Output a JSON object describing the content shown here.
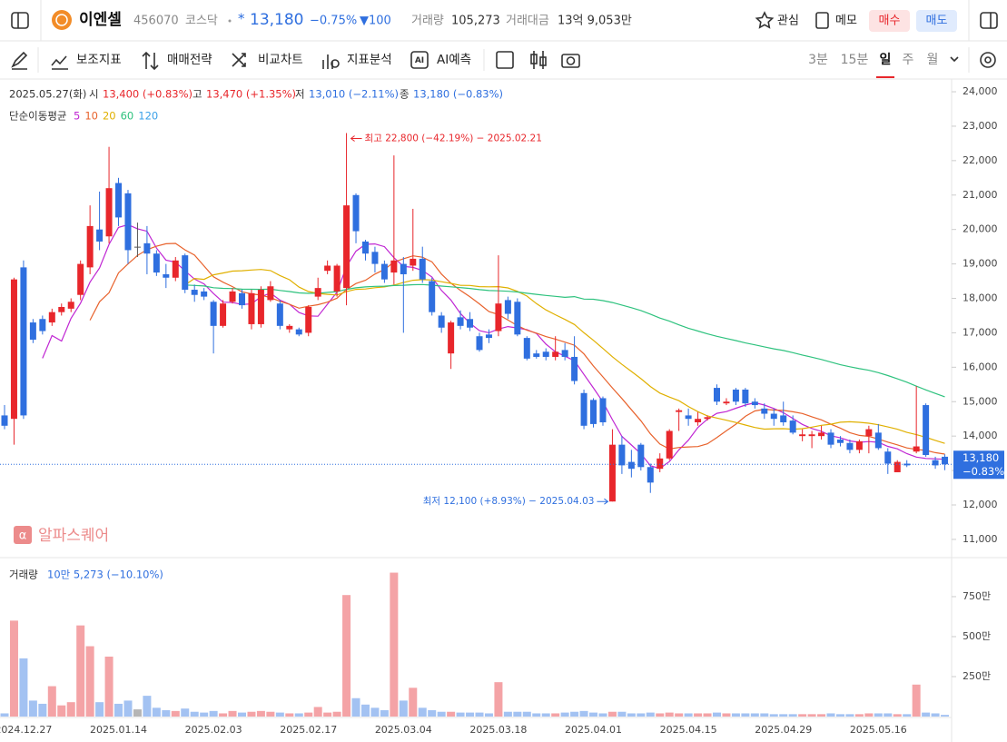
{
  "header": {
    "name": "이엔셀",
    "code": "456070",
    "market": "코스닥",
    "star": "*",
    "price": "13,180",
    "change_pct": "−0.75%",
    "change": "▼100",
    "volume_label": "거래량",
    "volume": "105,273",
    "amount_label": "거래대금",
    "amount": "13억 9,053만",
    "actions": [
      "관심",
      "메모",
      "매수",
      "매도"
    ]
  },
  "toolbar": {
    "tools": [
      "보조지표",
      "매매전략",
      "비교차트",
      "지표분석",
      "AI예측"
    ],
    "intervals": [
      "3분",
      "15분",
      "일",
      "주",
      "월"
    ]
  },
  "chart_data": {
    "type": "candlestick",
    "info": {
      "date": "2025.05.27(화)",
      "open_label": "시",
      "open": "13,400 (+0.83%)",
      "high_label": "고",
      "high": "13,470 (+1.35%)",
      "low_label": "저",
      "low": "13,010 (−2.11%)",
      "close_label": "종",
      "close": "13,180 (−0.83%)"
    },
    "ma_label": "단순이동평균",
    "moving_averages": [
      {
        "period": 5,
        "color": "#c026d3"
      },
      {
        "period": 10,
        "color": "#e8622c"
      },
      {
        "period": 20,
        "color": "#e0b000"
      },
      {
        "period": 60,
        "color": "#2ec27e"
      },
      {
        "period": 120,
        "color": "#3aa0e8"
      }
    ],
    "up_color": "#e8262b",
    "down_color": "#2f6fdf",
    "flat_color": "#555555",
    "categories": [
      null,
      null,
      "2024.12.27",
      null,
      null,
      null,
      null,
      null,
      null,
      null,
      null,
      null,
      "2025.01.14",
      null,
      null,
      null,
      null,
      null,
      null,
      null,
      null,
      null,
      "2025.02.03",
      null,
      null,
      null,
      null,
      null,
      null,
      null,
      null,
      null,
      "2025.02.17",
      null,
      null,
      null,
      null,
      null,
      null,
      null,
      null,
      null,
      "2025.03.04",
      null,
      null,
      null,
      null,
      null,
      null,
      null,
      null,
      null,
      "2025.03.18",
      null,
      null,
      null,
      null,
      null,
      null,
      null,
      null,
      null,
      "2025.04.01",
      null,
      null,
      null,
      null,
      null,
      null,
      null,
      null,
      null,
      "2025.04.15",
      null,
      null,
      null,
      null,
      null,
      null,
      null,
      null,
      null,
      "2025.04.29",
      null,
      null,
      null,
      null,
      null,
      null,
      null,
      null,
      null,
      "2025.05.16",
      null,
      null,
      null,
      null,
      null,
      null,
      null
    ],
    "open": [
      14600,
      14500,
      18900,
      17300,
      17400,
      17300,
      17600,
      17700,
      18100,
      18900,
      20000,
      19800,
      21350,
      21050,
      19500,
      19600,
      19300,
      18700,
      18600,
      19250,
      18250,
      18200,
      17900,
      17200,
      17900,
      18150,
      17250,
      17250,
      17950,
      17850,
      17100,
      17100,
      17000,
      18050,
      18800,
      18200,
      18300,
      21000,
      19650,
      19350,
      19000,
      18750,
      19000,
      18950,
      19150,
      18500,
      17500,
      16400,
      17450,
      17400,
      16900,
      16950,
      17050,
      17950,
      17900,
      16850,
      16400,
      16450,
      16300,
      16500,
      16300,
      15250,
      15050,
      15100,
      12100,
      13750,
      13250,
      13750,
      13100,
      13050,
      13350,
      14700,
      14600,
      14400,
      14500,
      15400,
      14950,
      15350,
      15350,
      15000,
      14800,
      14650,
      14600,
      14450,
      14000,
      14000,
      14000,
      14100,
      13900,
      13800,
      13600,
      14000,
      14100,
      13550,
      12950,
      13200,
      13550,
      14900,
      13300,
      13400
    ],
    "high": [
      14900,
      18600,
      19100,
      17400,
      17500,
      17700,
      17850,
      18000,
      19100,
      20700,
      21100,
      22400,
      21500,
      21150,
      20200,
      20100,
      19400,
      19000,
      19200,
      19300,
      18400,
      18300,
      17950,
      17950,
      18300,
      18250,
      18250,
      18350,
      18500,
      17950,
      17250,
      17150,
      17800,
      18600,
      19100,
      19000,
      22800,
      21050,
      19700,
      19500,
      19100,
      22150,
      19200,
      20600,
      19500,
      18600,
      17600,
      17350,
      17650,
      17600,
      17000,
      17100,
      19250,
      18050,
      18000,
      16900,
      16500,
      16550,
      16900,
      16700,
      16900,
      15350,
      15100,
      15150,
      14200,
      14000,
      13600,
      13800,
      13200,
      13500,
      14200,
      14800,
      14800,
      14700,
      14600,
      15500,
      15100,
      15400,
      15400,
      15100,
      14950,
      14800,
      15000,
      14600,
      14200,
      14150,
      14300,
      14200,
      14000,
      13900,
      13900,
      14300,
      14350,
      13650,
      13300,
      13300,
      15450,
      14950,
      13400,
      13470
    ],
    "low": [
      14200,
      13750,
      14500,
      16700,
      16950,
      17200,
      17500,
      17600,
      17950,
      18700,
      19400,
      19600,
      20100,
      19000,
      19200,
      18700,
      18650,
      18300,
      18500,
      18150,
      17900,
      17950,
      16400,
      17150,
      17850,
      17700,
      17100,
      17150,
      17900,
      17100,
      17000,
      16900,
      16900,
      17950,
      18700,
      18050,
      17800,
      19600,
      19100,
      18750,
      18450,
      18400,
      17000,
      18800,
      18450,
      17500,
      17000,
      15950,
      17100,
      17050,
      16450,
      16700,
      16900,
      17400,
      16900,
      16200,
      16250,
      16200,
      16200,
      16200,
      15500,
      14200,
      14250,
      14300,
      12100,
      12900,
      12800,
      13000,
      12350,
      12950,
      13300,
      14150,
      14300,
      14300,
      14450,
      14900,
      14900,
      14900,
      14850,
      14800,
      14500,
      14300,
      14300,
      14050,
      13850,
      13650,
      13900,
      13650,
      13700,
      13500,
      13500,
      13500,
      13600,
      12900,
      12950,
      13100,
      13500,
      13400,
      13050,
      13010
    ],
    "close": [
      14300,
      18550,
      14600,
      16800,
      17050,
      17600,
      17750,
      17900,
      19000,
      20100,
      19650,
      21200,
      20350,
      19400,
      19500,
      19300,
      18750,
      18600,
      19100,
      18250,
      18100,
      18050,
      17200,
      17850,
      18200,
      17800,
      18150,
      18250,
      18350,
      17200,
      17200,
      16950,
      17750,
      18300,
      18950,
      18950,
      20700,
      19950,
      19300,
      19000,
      18550,
      19100,
      18700,
      19150,
      18550,
      17600,
      17150,
      17300,
      17200,
      17150,
      16500,
      16850,
      17850,
      17550,
      16950,
      16250,
      16300,
      16300,
      16450,
      16300,
      15600,
      14300,
      14350,
      14400,
      13750,
      13150,
      13050,
      13100,
      12650,
      13350,
      14150,
      14750,
      14500,
      14500,
      14550,
      15000,
      15000,
      15000,
      14950,
      14900,
      14650,
      14500,
      14400,
      14100,
      14050,
      14050,
      14100,
      13750,
      13800,
      13600,
      13850,
      14200,
      13650,
      13200,
      13250,
      13150,
      13700,
      13450,
      13150,
      13180
    ],
    "ylim": [
      10470,
      24370
    ],
    "yticks": [
      {
        "value": 11000,
        "label": "11,000"
      },
      {
        "value": 12000,
        "label": "12,000"
      },
      {
        "value": 13000,
        "label": "13,000"
      },
      {
        "value": 14000,
        "label": "14,000"
      },
      {
        "value": 15000,
        "label": "15,000"
      },
      {
        "value": 16000,
        "label": "16,000"
      },
      {
        "value": 17000,
        "label": "17,000"
      },
      {
        "value": 18000,
        "label": "18,000"
      },
      {
        "value": 19000,
        "label": "19,000"
      },
      {
        "value": 20000,
        "label": "20,000"
      },
      {
        "value": 21000,
        "label": "21,000"
      },
      {
        "value": 22000,
        "label": "22,000"
      },
      {
        "value": 23000,
        "label": "23,000"
      },
      {
        "value": 24000,
        "label": "24,000"
      }
    ],
    "high_annotation": "최고 22,800 (−42.19%) − 2025.02.21",
    "low_annotation": "최저 12,100 (+8.93%) − 2025.04.03",
    "last_price_label": "13,180",
    "last_change_label": "−0.83%",
    "watermark": "알파스퀘어",
    "volume": {
      "title": "거래량",
      "summary": "10만 5,273 (−10.10%)",
      "up_color": "#f4a3a6",
      "down_color": "#a3c2f2",
      "flat_color": "#b5b5b5",
      "values": [
        200000,
        6000000,
        3640000,
        1000000,
        800000,
        1900000,
        700000,
        900000,
        5700000,
        4400000,
        900000,
        3750000,
        800000,
        1000000,
        450000,
        1300000,
        550000,
        400000,
        350000,
        500000,
        300000,
        250000,
        350000,
        200000,
        350000,
        250000,
        300000,
        350000,
        300000,
        250000,
        200000,
        200000,
        250000,
        600000,
        250000,
        300000,
        7600000,
        1150000,
        750000,
        550000,
        400000,
        9000000,
        1000000,
        1800000,
        550000,
        400000,
        300000,
        300000,
        250000,
        250000,
        250000,
        200000,
        2150000,
        300000,
        300000,
        300000,
        200000,
        200000,
        200000,
        250000,
        300000,
        350000,
        250000,
        200000,
        300000,
        300000,
        200000,
        200000,
        250000,
        200000,
        250000,
        200000,
        200000,
        200000,
        200000,
        250000,
        200000,
        200000,
        200000,
        200000,
        200000,
        150000,
        150000,
        150000,
        150000,
        150000,
        150000,
        200000,
        150000,
        150000,
        150000,
        200000,
        200000,
        200000,
        150000,
        150000,
        2000000,
        250000,
        200000,
        105273
      ],
      "ylim": [
        0,
        9940000
      ],
      "yticks": [
        {
          "value": 2500000,
          "label": "250만"
        },
        {
          "value": 5000000,
          "label": "500만"
        },
        {
          "value": 7500000,
          "label": "750만"
        }
      ]
    }
  }
}
